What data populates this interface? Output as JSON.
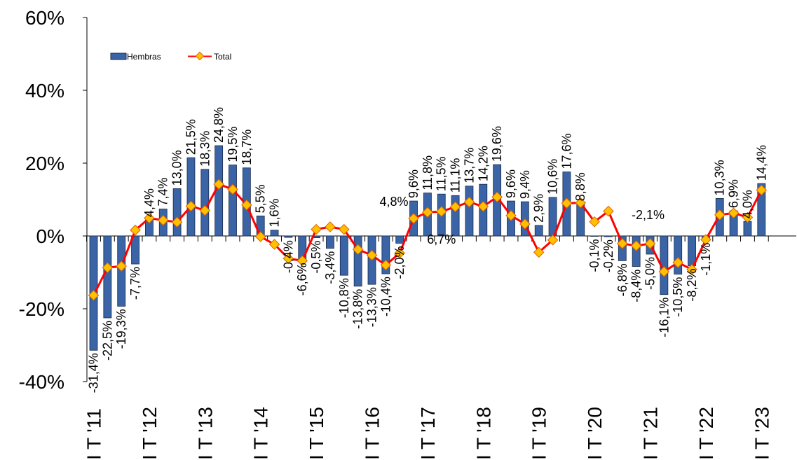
{
  "chart_data": {
    "type": "bar",
    "ylim": [
      -40,
      60
    ],
    "yticks": [
      "60%",
      "40%",
      "20%",
      "0%",
      "-20%",
      "-40%"
    ],
    "ytick_values": [
      60,
      40,
      20,
      0,
      -20,
      -40
    ],
    "x_tick_labels": [
      "I T '11",
      "I T '12",
      "I T '13",
      "I T '14",
      "I T '15",
      "I T '16",
      "I T '17",
      "I T '18",
      "I T '19",
      "I T '20",
      "I T '21",
      "I T '22",
      "I T '23"
    ],
    "x_tick_indices": [
      0,
      4,
      8,
      12,
      16,
      20,
      24,
      28,
      32,
      36,
      40,
      44,
      48
    ],
    "legend": {
      "placement": "top-left"
    },
    "colors": {
      "bar": "#3a64a6",
      "bar_edge": "#1a2a4a",
      "line": "#ff0000",
      "marker": "#ffc000",
      "marker_edge": "#e06000"
    },
    "series": [
      {
        "name": "Hembras",
        "kind": "bar",
        "values": [
          -31.4,
          -22.5,
          -19.3,
          -7.7,
          4.4,
          7.4,
          13.0,
          21.5,
          18.3,
          24.8,
          19.5,
          18.7,
          5.5,
          1.6,
          -0.4,
          -6.6,
          -0.5,
          -3.4,
          -10.8,
          -13.8,
          -13.3,
          -10.4,
          -2.0,
          9.6,
          11.8,
          11.5,
          11.1,
          13.7,
          14.2,
          19.6,
          9.6,
          9.4,
          2.9,
          10.6,
          17.6,
          8.8,
          -0.1,
          -0.2,
          -6.8,
          -8.4,
          -5.0,
          -16.1,
          -10.5,
          -8.2,
          -1.1,
          10.3,
          6.9,
          4.0,
          14.4
        ],
        "labels": [
          "-31,4%",
          "-22,5%",
          "-19,3%",
          "-7,7%",
          "4,4%",
          "7,4%",
          "13,0%",
          "21,5%",
          "18,3%",
          "24,8%",
          "19,5%",
          "18,7%",
          "5,5%",
          "1,6%",
          "-0,4%",
          "-6,6%",
          "-0,5%",
          "-3,4%",
          "-10,8%",
          "-13,8%",
          "-13,3%",
          "-10,4%",
          "-2,0%",
          "9,6%",
          "11,8%",
          "11,5%",
          "11,1%",
          "13,7%",
          "14,2%",
          "19,6%",
          "9,6%",
          "9,4%",
          "2,9%",
          "10,6%",
          "17,6%",
          "8,8%",
          "-0,1%",
          "-0,2%",
          "-6,8%",
          "-8,4%",
          "-5,0%",
          "-16,1%",
          "-10,5%",
          "-8,2%",
          "-1,1%",
          "10,3%",
          "6,9%",
          "4,0%",
          "14,4%"
        ]
      },
      {
        "name": "Total",
        "kind": "line",
        "values": [
          -16.3,
          -8.7,
          -8.3,
          1.6,
          4.9,
          4.3,
          3.8,
          8.2,
          7.0,
          14.2,
          12.8,
          8.5,
          -0.2,
          -2.3,
          -6.2,
          -6.8,
          1.8,
          2.5,
          1.8,
          -3.7,
          -5.3,
          -8.0,
          -4.7,
          4.8,
          6.5,
          6.7,
          8.0,
          9.3,
          8.1,
          10.7,
          5.6,
          3.3,
          -4.5,
          -1.1,
          9.0,
          9.1,
          3.9,
          6.8,
          -2.1,
          -2.7,
          -2.1,
          -9.8,
          -7.3,
          -9.2,
          -1.0,
          5.8,
          6.3,
          5.1,
          12.6
        ],
        "annotations": [
          {
            "index": 23,
            "text": "4,8%",
            "position": "above-left"
          },
          {
            "index": 25,
            "text": "6,7%",
            "position": "below"
          },
          {
            "index": 40,
            "text": "-2,1%",
            "position": "above"
          }
        ]
      }
    ]
  }
}
